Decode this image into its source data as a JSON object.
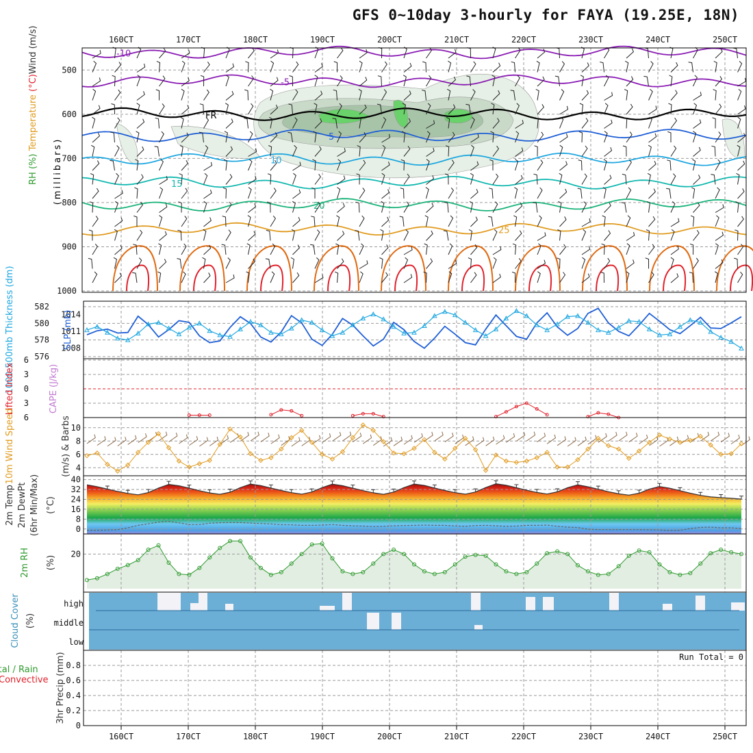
{
  "header": {
    "title": "GFS 0~10day 3-hourly for FAYA (19.25E, 18N)"
  },
  "colors": {
    "purple": "#8a1bb3",
    "black": "#000000",
    "blue": "#1f5fd6",
    "lightblue": "#1ea7e0",
    "teal": "#12b8b0",
    "green": "#19b37a",
    "orange": "#e09b1f",
    "darkorange": "#e06a10",
    "red": "#e0202a",
    "rh_green": "#5ad15a",
    "rh_gray": "#9bb79b",
    "cloud_blue": "#6baed6",
    "cape_violet": "#c27ad1"
  },
  "chart_data": [
    {
      "id": "upper-air",
      "type": "contour",
      "x_tick_labels": [
        "160CT",
        "170CT",
        "180CT",
        "190CT",
        "200CT",
        "210CT",
        "220CT",
        "230CT",
        "240CT",
        "250CT"
      ],
      "ylabel_parts": [
        "RH (%)",
        "Temperature (°C)",
        "Wind (m/s)"
      ],
      "ylabel_unit": "(millibars)",
      "yticks": [
        500,
        600,
        700,
        800,
        900,
        1000
      ],
      "ylim": [
        450,
        1000
      ],
      "isotherms": [
        {
          "label": "-10",
          "pressure": 460,
          "color": "purple"
        },
        {
          "label": "-5",
          "pressure": 525,
          "color": "purple"
        },
        {
          "label": "FR",
          "pressure": 600,
          "color": "black"
        },
        {
          "label": "5",
          "pressure": 648,
          "color": "blue"
        },
        {
          "label": "10",
          "pressure": 702,
          "color": "lightblue"
        },
        {
          "label": "15",
          "pressure": 755,
          "color": "teal"
        },
        {
          "label": "20",
          "pressure": 805,
          "color": "green"
        },
        {
          "label": "25",
          "pressure": 860,
          "color": "orange"
        }
      ],
      "rh_contour_labels": [
        "30",
        "50",
        "70"
      ]
    },
    {
      "id": "thickness-slp",
      "type": "line",
      "ylabel_left": "1000-500mb Thickness (dm)",
      "ylabel_right": "SLP (mb)",
      "thickness_ticks": [
        576,
        578,
        580,
        582
      ],
      "slp_ticks": [
        1008,
        1011,
        1014
      ],
      "series": [
        {
          "name": "Thickness (dm)",
          "color": "lightblue",
          "values": [
            579.2,
            579.6,
            578.9,
            578.2,
            578.0,
            578.8,
            579.9,
            580.1,
            579.4,
            578.7,
            579.5,
            580.0,
            579.1,
            578.6,
            578.4,
            579.3,
            580.2,
            579.8,
            578.9,
            578.7,
            579.4,
            580.4,
            580.1,
            579.2,
            578.5,
            578.9,
            579.8,
            580.6,
            581.1,
            580.5,
            579.6,
            578.8,
            578.9,
            579.7,
            580.9,
            581.4,
            581.0,
            580.1,
            579.2,
            578.5,
            579.3,
            580.6,
            581.5,
            580.9,
            579.8,
            579.2,
            579.9,
            580.8,
            580.9,
            580.1,
            579.2,
            578.9,
            579.5,
            580.3,
            580.2,
            579.3,
            578.6,
            578.7,
            579.6,
            580.4,
            580.1,
            579.0,
            578.3,
            577.8,
            577.0
          ]
        },
        {
          "name": "SLP (mb)",
          "color": "blue",
          "values": [
            1010.4,
            1011.1,
            1011.4,
            1010.7,
            1010.8,
            1013.7,
            1012.2,
            1010.0,
            1011.3,
            1012.9,
            1012.6,
            1010.2,
            1009.0,
            1009.3,
            1011.7,
            1013.6,
            1012.4,
            1010.0,
            1009.1,
            1010.9,
            1013.8,
            1012.5,
            1009.6,
            1008.5,
            1010.5,
            1013.3,
            1012.1,
            1010.2,
            1008.4,
            1009.6,
            1012.6,
            1011.3,
            1009.2,
            1008.0,
            1009.8,
            1011.9,
            1010.5,
            1009.0,
            1008.6,
            1011.4,
            1013.9,
            1012.0,
            1010.1,
            1009.6,
            1012.5,
            1014.3,
            1011.8,
            1010.3,
            1011.5,
            1014.2,
            1015.1,
            1012.5,
            1011.0,
            1010.2,
            1012.1,
            1014.2,
            1012.8,
            1011.3,
            1010.6,
            1012.0,
            1013.5,
            1011.6,
            1011.5,
            1012.5,
            1013.6
          ]
        }
      ]
    },
    {
      "id": "lifted-cape",
      "type": "line",
      "ylabel_left": "Lifted Index",
      "ylabel_right": "CAPE (J/kg)",
      "yticks": [
        -6,
        -3,
        0,
        3,
        6
      ],
      "ytick_labels": [
        "6",
        "3",
        "0",
        "3",
        "6"
      ],
      "series": [
        {
          "name": "Lifted Index segment 1",
          "color": "red",
          "start": 10,
          "values": [
            5.5,
            5.5,
            5.5
          ]
        },
        {
          "name": "Lifted Index segment 2",
          "color": "red",
          "start": 18,
          "values": [
            5.4,
            4.4,
            4.6,
            5.6
          ]
        },
        {
          "name": "Lifted Index segment 3",
          "color": "red",
          "start": 26,
          "values": [
            5.6,
            5.2,
            5.2,
            5.8
          ]
        },
        {
          "name": "Lifted Index segment 4",
          "color": "red",
          "start": 40,
          "values": [
            5.8,
            4.8,
            3.7,
            3.0,
            4.2,
            5.4
          ]
        },
        {
          "name": "Lifted Index segment 5",
          "color": "red",
          "start": 49,
          "values": [
            5.8,
            5.0,
            5.3,
            6.0
          ]
        }
      ]
    },
    {
      "id": "wind10m",
      "type": "line",
      "ylabel_left": "10m Wind Speed",
      "ylabel_right": "(m/s) & Barbs",
      "yticks": [
        4,
        6,
        8,
        10
      ],
      "series": [
        {
          "name": "Wind speed (m/s)",
          "color": "orange",
          "values": [
            5.8,
            6.2,
            4.5,
            3.5,
            4.4,
            6.3,
            7.8,
            9.1,
            7.0,
            5.0,
            4.1,
            4.6,
            5.1,
            7.5,
            9.8,
            8.6,
            6.1,
            5.1,
            5.5,
            6.8,
            8.5,
            9.6,
            7.8,
            6.0,
            5.3,
            6.4,
            8.5,
            10.4,
            9.6,
            7.9,
            6.2,
            6.1,
            6.9,
            8.2,
            6.3,
            5.3,
            6.9,
            8.4,
            6.7,
            3.6,
            5.9,
            5.0,
            4.8,
            5.0,
            5.5,
            6.3,
            4.1,
            4.1,
            5.2,
            6.8,
            8.4,
            7.3,
            6.8,
            5.4,
            6.5,
            7.8,
            8.9,
            8.3,
            7.8,
            8.1,
            8.7,
            7.4,
            6.0,
            6.1,
            7.6
          ]
        }
      ]
    },
    {
      "id": "temp2m",
      "type": "area",
      "ylabel_lines": [
        "2m Temp",
        "2m DewPt",
        "(6hr Min/Max)"
      ],
      "ylabel_unit": "(°C)",
      "yticks": [
        0,
        8,
        16,
        24,
        32,
        40
      ],
      "series": [
        {
          "name": "2m Temp (°C)",
          "color": "#333333",
          "values": [
            35.8,
            34.3,
            32.3,
            30.4,
            28.8,
            27.7,
            29.5,
            33.2,
            36.1,
            35.0,
            33.1,
            31.0,
            29.2,
            28.1,
            29.8,
            33.5,
            36.4,
            35.2,
            33.2,
            31.2,
            29.4,
            28.2,
            30.0,
            33.5,
            36.3,
            35.1,
            33.1,
            31.1,
            29.3,
            28.1,
            29.9,
            33.5,
            36.4,
            35.3,
            33.2,
            31.2,
            29.4,
            28.2,
            30.0,
            33.6,
            36.6,
            35.4,
            33.4,
            31.4,
            29.6,
            28.3,
            30.1,
            33.4,
            35.8,
            34.2,
            32.2,
            30.2,
            28.5,
            27.4,
            29.0,
            32.3,
            34.4,
            33.0,
            31.0,
            29.0,
            27.2,
            26.0,
            25.4,
            24.9,
            24.2
          ]
        },
        {
          "name": "2m DewPt (°C)",
          "color": "#555555",
          "values": [
            -1.0,
            -1.0,
            -0.8,
            -0.5,
            1.0,
            3.0,
            4.2,
            5.6,
            6.2,
            5.0,
            3.6,
            3.6,
            4.7,
            5.1,
            5.2,
            5.2,
            4.8,
            4.4,
            4.1,
            3.5,
            3.4,
            3.0,
            3.0,
            3.2,
            3.6,
            3.0,
            2.6,
            2.4,
            2.0,
            2.2,
            2.6,
            2.8,
            3.0,
            3.2,
            3.0,
            3.0,
            2.5,
            2.2,
            2.8,
            3.0,
            2.6,
            2.2,
            2.4,
            3.0,
            3.0,
            3.2,
            2.2,
            1.5,
            1.2,
            -0.2,
            -0.5,
            -0.5,
            -0.5,
            -0.5,
            -0.5,
            -0.6,
            -0.8,
            -1.2,
            -1.0,
            0.4,
            1.3,
            1.5,
            1.0,
            1.0,
            0.3
          ]
        }
      ]
    },
    {
      "id": "rh2m",
      "type": "area",
      "ylabel_left": "2m RH",
      "ylabel_unit": "(%)",
      "yticks": [
        20
      ],
      "series": [
        {
          "name": "2m RH (%)",
          "color": "#2e9a2e",
          "values": [
            5.0,
            6.0,
            8.5,
            11.5,
            13.6,
            16.5,
            22.5,
            25.0,
            15.0,
            8.5,
            8.0,
            12.0,
            18.0,
            23.5,
            27.5,
            27.5,
            18.0,
            12.0,
            8.0,
            9.5,
            14.5,
            20.0,
            25.5,
            26.0,
            17.5,
            10.0,
            8.5,
            9.5,
            14.5,
            20.0,
            22.5,
            20.0,
            14.0,
            10.0,
            8.5,
            9.5,
            14.0,
            18.5,
            19.5,
            19.0,
            14.0,
            10.0,
            8.5,
            9.5,
            14.5,
            20.5,
            21.5,
            20.0,
            13.5,
            10.0,
            8.0,
            8.5,
            13.0,
            19.0,
            22.0,
            21.0,
            14.0,
            9.5,
            8.0,
            9.0,
            14.5,
            20.5,
            22.5,
            21.0,
            20.0
          ]
        }
      ]
    },
    {
      "id": "cloud-cover",
      "type": "bar",
      "ylabel_left": "Cloud Cover",
      "ylabel_unit": "(%)",
      "level_labels": [
        "high",
        "middle",
        "low"
      ]
    },
    {
      "id": "precip",
      "type": "bar",
      "ylabel_lines": [
        "Total / Rain",
        "Convective"
      ],
      "ylabel_unit": "3hr Precip (mm)",
      "yticks": [
        0,
        0.2,
        0.4,
        0.6,
        0.8
      ],
      "ylim": [
        0,
        1
      ],
      "annotation": "Run Total = 0",
      "values": [
        0
      ]
    }
  ]
}
